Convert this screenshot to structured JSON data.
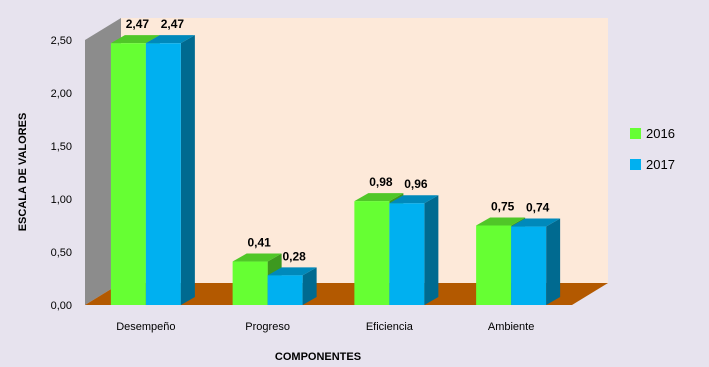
{
  "chart_data": {
    "type": "bar",
    "categories": [
      "Desempeño",
      "Progreso",
      "Eficiencia",
      "Ambiente"
    ],
    "series": [
      {
        "name": "2016",
        "values": [
          2.47,
          0.41,
          0.98,
          0.75
        ],
        "labels": [
          "2,47",
          "0,41",
          "0,98",
          "0,75"
        ]
      },
      {
        "name": "2017",
        "values": [
          2.47,
          0.28,
          0.96,
          0.74
        ],
        "labels": [
          "2,47",
          "0,28",
          "0,96",
          "0,74"
        ]
      }
    ],
    "xlabel": "COMPONENTES",
    "ylabel": "ESCALA DE VALORES",
    "ylim": [
      0,
      2.5
    ],
    "yticks": [
      "0,00",
      "0,50",
      "1,00",
      "1,50",
      "2,00",
      "2,50"
    ],
    "legend_position": "right",
    "grid": false,
    "style": "3d-clustered-column"
  },
  "colors": {
    "series_2016": "#66ff33",
    "series_2017": "#00b0f0",
    "back_wall": "#fde9d9",
    "side_wall": "#8c8c8c",
    "floor": "#b35900",
    "background": "#e7e3ee"
  }
}
